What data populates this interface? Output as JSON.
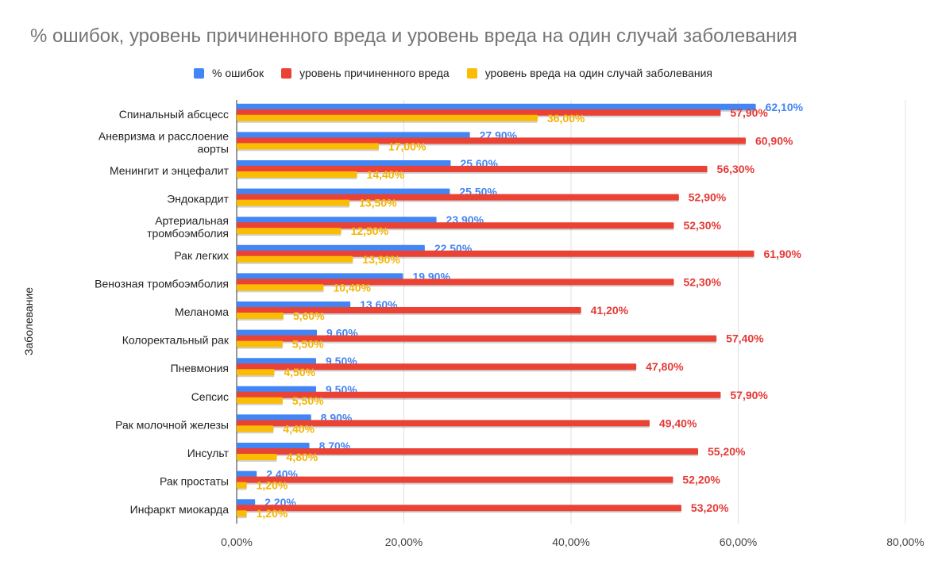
{
  "chart_data": {
    "type": "bar",
    "orientation": "horizontal",
    "title": "% ошибок, уровень причиненного вреда и уровень вреда на один случай заболевания",
    "ylabel": "Заболевание",
    "xlabel": "",
    "xlim": [
      0,
      80
    ],
    "x_ticks": [
      "0,00%",
      "20,00%",
      "40,00%",
      "60,00%",
      "80,00%"
    ],
    "grid": true,
    "legend_position": "top",
    "categories": [
      [
        "Спинальный абсцесс"
      ],
      [
        "Аневризма и расслоение",
        "аорты"
      ],
      [
        "Менингит и энцефалит"
      ],
      [
        "Эндокардит"
      ],
      [
        "Артериальная",
        "тромбоэмболия"
      ],
      [
        "Рак легких"
      ],
      [
        "Венозная тромбоэмболия"
      ],
      [
        "Меланома"
      ],
      [
        "Колоректальный рак"
      ],
      [
        "Пневмония"
      ],
      [
        "Сепсис"
      ],
      [
        "Рак молочной железы"
      ],
      [
        "Инсульт"
      ],
      [
        "Рак простаты"
      ],
      [
        "Инфаркт миокарда"
      ]
    ],
    "series": [
      {
        "name": "% ошибок",
        "color": "#4285f4",
        "label_color": "#4285f4",
        "values": [
          62.1,
          27.9,
          25.6,
          25.5,
          23.9,
          22.5,
          19.9,
          13.6,
          9.6,
          9.5,
          9.5,
          8.9,
          8.7,
          2.4,
          2.2
        ],
        "labels": [
          "62,10%",
          "27,90%",
          "25,60%",
          "25,50%",
          "23,90%",
          "22,50%",
          "19,90%",
          "13,60%",
          "9,60%",
          "9,50%",
          "9,50%",
          "8,90%",
          "8,70%",
          "2,40%",
          "2,20%"
        ]
      },
      {
        "name": "уровень причиненного вреда",
        "color": "#ea4335",
        "label_color": "#e53935",
        "values": [
          57.9,
          60.9,
          56.3,
          52.9,
          52.3,
          61.9,
          52.3,
          41.2,
          57.4,
          47.8,
          57.9,
          49.4,
          55.2,
          52.2,
          53.2
        ],
        "labels": [
          "57,90%",
          "60,90%",
          "56,30%",
          "52,90%",
          "52,30%",
          "61,90%",
          "52,30%",
          "41,20%",
          "57,40%",
          "47,80%",
          "57,90%",
          "49,40%",
          "55,20%",
          "52,20%",
          "53,20%"
        ]
      },
      {
        "name": "уровень вреда на один случай заболевания",
        "color": "#fbbc04",
        "label_color": "#f4b400",
        "values": [
          36.0,
          17.0,
          14.4,
          13.5,
          12.5,
          13.9,
          10.4,
          5.6,
          5.5,
          4.5,
          5.5,
          4.4,
          4.8,
          1.2,
          1.2
        ],
        "labels": [
          "36,00%",
          "17,00%",
          "14,40%",
          "13,50%",
          "12,50%",
          "13,90%",
          "10,40%",
          "5,60%",
          "5,50%",
          "4,50%",
          "5,50%",
          "4,40%",
          "4,80%",
          "1,20%",
          "1,20%"
        ]
      }
    ]
  }
}
